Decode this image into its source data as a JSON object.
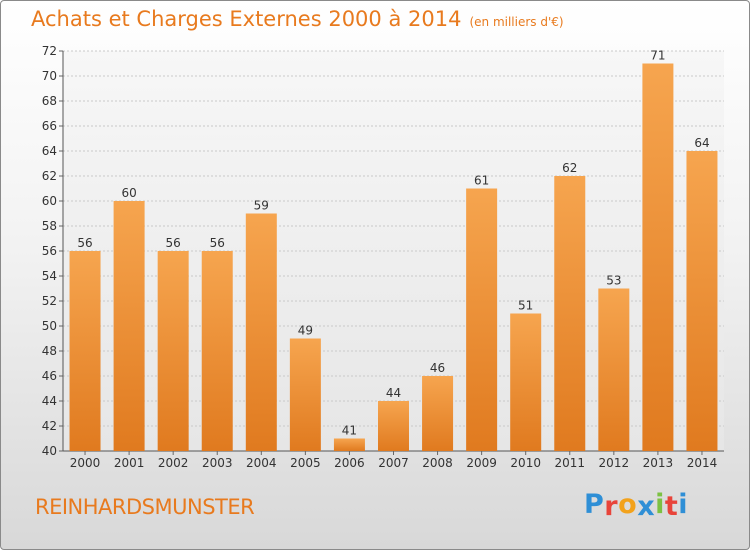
{
  "header": {
    "title": "Achats et Charges Externes 2000 à 2014",
    "subtitle": "(en milliers d'€)"
  },
  "footer": {
    "commune": "REINHARDSMUNSTER",
    "logo_letters": [
      "P",
      "r",
      "o",
      "x",
      "i",
      "t",
      "i"
    ],
    "logo_colors": [
      "#2f8fd6",
      "#e8443a",
      "#f2a21c",
      "#2f8fd6",
      "#7cc142",
      "#e8443a",
      "#2f8fd6"
    ]
  },
  "chart_data": {
    "type": "bar",
    "categories": [
      "2000",
      "2001",
      "2002",
      "2003",
      "2004",
      "2005",
      "2006",
      "2007",
      "2008",
      "2009",
      "2010",
      "2011",
      "2012",
      "2013",
      "2014"
    ],
    "values": [
      56,
      60,
      56,
      56,
      59,
      49,
      41,
      44,
      46,
      61,
      51,
      62,
      53,
      71,
      64
    ],
    "ylim": [
      40,
      72
    ],
    "yticks": [
      40,
      42,
      44,
      46,
      48,
      50,
      52,
      54,
      56,
      58,
      60,
      62,
      64,
      66,
      68,
      70,
      72
    ],
    "grid": true,
    "bar_color_top": "#f6a54f",
    "bar_color_bottom": "#e07a1f"
  }
}
